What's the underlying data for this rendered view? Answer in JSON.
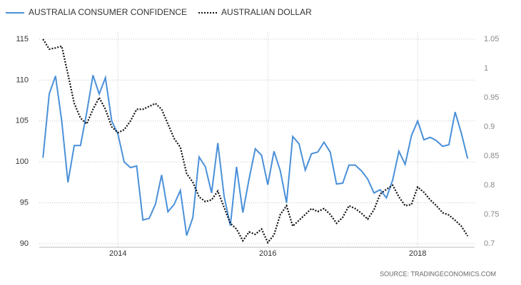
{
  "chart_data": {
    "type": "line",
    "x": [
      2013,
      2013.083,
      2013.167,
      2013.25,
      2013.333,
      2013.417,
      2013.5,
      2013.583,
      2013.667,
      2013.75,
      2013.833,
      2013.917,
      2014,
      2014.083,
      2014.167,
      2014.25,
      2014.333,
      2014.417,
      2014.5,
      2014.583,
      2014.667,
      2014.75,
      2014.833,
      2014.917,
      2015,
      2015.083,
      2015.167,
      2015.25,
      2015.333,
      2015.417,
      2015.5,
      2015.583,
      2015.667,
      2015.75,
      2015.833,
      2015.917,
      2016,
      2016.083,
      2016.167,
      2016.25,
      2016.333,
      2016.417,
      2016.5,
      2016.583,
      2016.667,
      2016.75,
      2016.833,
      2016.917,
      2017,
      2017.083,
      2017.167,
      2017.25,
      2017.333,
      2017.417,
      2017.5,
      2017.583,
      2017.667,
      2017.75,
      2017.833,
      2017.917,
      2018,
      2018.083,
      2018.167,
      2018.25,
      2018.333,
      2018.417,
      2018.5,
      2018.583,
      2018.667
    ],
    "series": [
      {
        "name": "AUSTRALIA CONSUMER CONFIDENCE",
        "color": "#4a90d9",
        "dash": "solid",
        "values": [
          100.5,
          108.3,
          110.5,
          105,
          97.5,
          102,
          102,
          106,
          110.6,
          108.3,
          110.3,
          105,
          103.4,
          100,
          99.3,
          99.5,
          92.9,
          93.1,
          94.8,
          98.4,
          93.9,
          94.8,
          96.5,
          91,
          93.2,
          100.6,
          99.4,
          96.2,
          102.3,
          95.8,
          92.2,
          99.4,
          93.8,
          97.9,
          101.6,
          100.8,
          97.2,
          101.3,
          98.9,
          95,
          103.1,
          102.2,
          99,
          101,
          101.2,
          102.4,
          101.2,
          97.3,
          97.4,
          99.6,
          99.6,
          98.9,
          97.9,
          96.2,
          96.6,
          95.6,
          97.8,
          101.3,
          99.7,
          103.2,
          105,
          102.7,
          103,
          102.6,
          101.9,
          102.1,
          106.1,
          103.5,
          100.4
        ]
      },
      {
        "name": "AUSTRALIAN DOLLAR",
        "color": "#111111",
        "dash": "dotted",
        "axis": "y2",
        "values": [
          1.05,
          1.033,
          1.035,
          1.038,
          0.99,
          0.94,
          0.915,
          0.905,
          0.93,
          0.95,
          0.93,
          0.9,
          0.89,
          0.895,
          0.91,
          0.93,
          0.93,
          0.935,
          0.94,
          0.93,
          0.905,
          0.88,
          0.865,
          0.82,
          0.805,
          0.78,
          0.772,
          0.775,
          0.79,
          0.762,
          0.735,
          0.725,
          0.705,
          0.72,
          0.716,
          0.725,
          0.702,
          0.715,
          0.75,
          0.765,
          0.73,
          0.74,
          0.75,
          0.76,
          0.755,
          0.76,
          0.75,
          0.735,
          0.745,
          0.765,
          0.76,
          0.752,
          0.742,
          0.758,
          0.785,
          0.793,
          0.8,
          0.78,
          0.765,
          0.767,
          0.797,
          0.788,
          0.775,
          0.765,
          0.753,
          0.749,
          0.74,
          0.73,
          0.713
        ]
      }
    ],
    "xlim": [
      2012.95,
      2018.76
    ],
    "xticks": [
      2014,
      2016,
      2018
    ],
    "ylim": [
      90,
      115
    ],
    "yticks": [
      90,
      95,
      100,
      105,
      110,
      115
    ],
    "y2lim": [
      0.7,
      1.05
    ],
    "y2ticks": [
      0.7,
      0.75,
      0.8,
      0.85,
      0.9,
      0.95,
      1,
      1.05
    ],
    "grid": true,
    "source": "SOURCE: TRADINGECONOMICS.COM"
  }
}
